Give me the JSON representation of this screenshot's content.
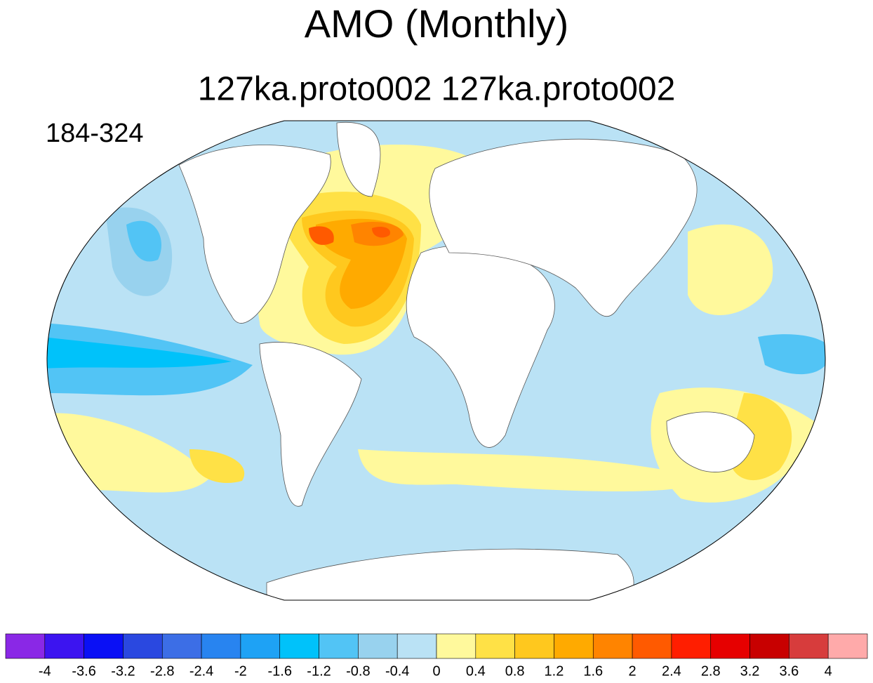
{
  "title": "AMO (Monthly)",
  "subtitle": "127ka.proto002  127ka.proto002",
  "label": "184-324",
  "colorbar": {
    "levels": [
      -4,
      -3.6,
      -3.2,
      -2.8,
      -2.4,
      -2,
      -1.6,
      -1.2,
      -0.8,
      -0.4,
      0,
      0.4,
      0.8,
      1.2,
      1.6,
      2,
      2.4,
      2.8,
      3.2,
      3.6,
      4
    ],
    "colors": [
      "#8a28e6",
      "#3c14f0",
      "#0a10f5",
      "#2a48e0",
      "#3c6ee6",
      "#2884f0",
      "#1ea2f5",
      "#00c2fa",
      "#52c4f5",
      "#98d2ee",
      "#bae2f5",
      "#fff99c",
      "#ffe146",
      "#ffc81e",
      "#ffaa00",
      "#ff8400",
      "#ff5a00",
      "#ff1e00",
      "#e60000",
      "#c80000",
      "#d73c3c",
      "#ffaaaa"
    ]
  }
}
